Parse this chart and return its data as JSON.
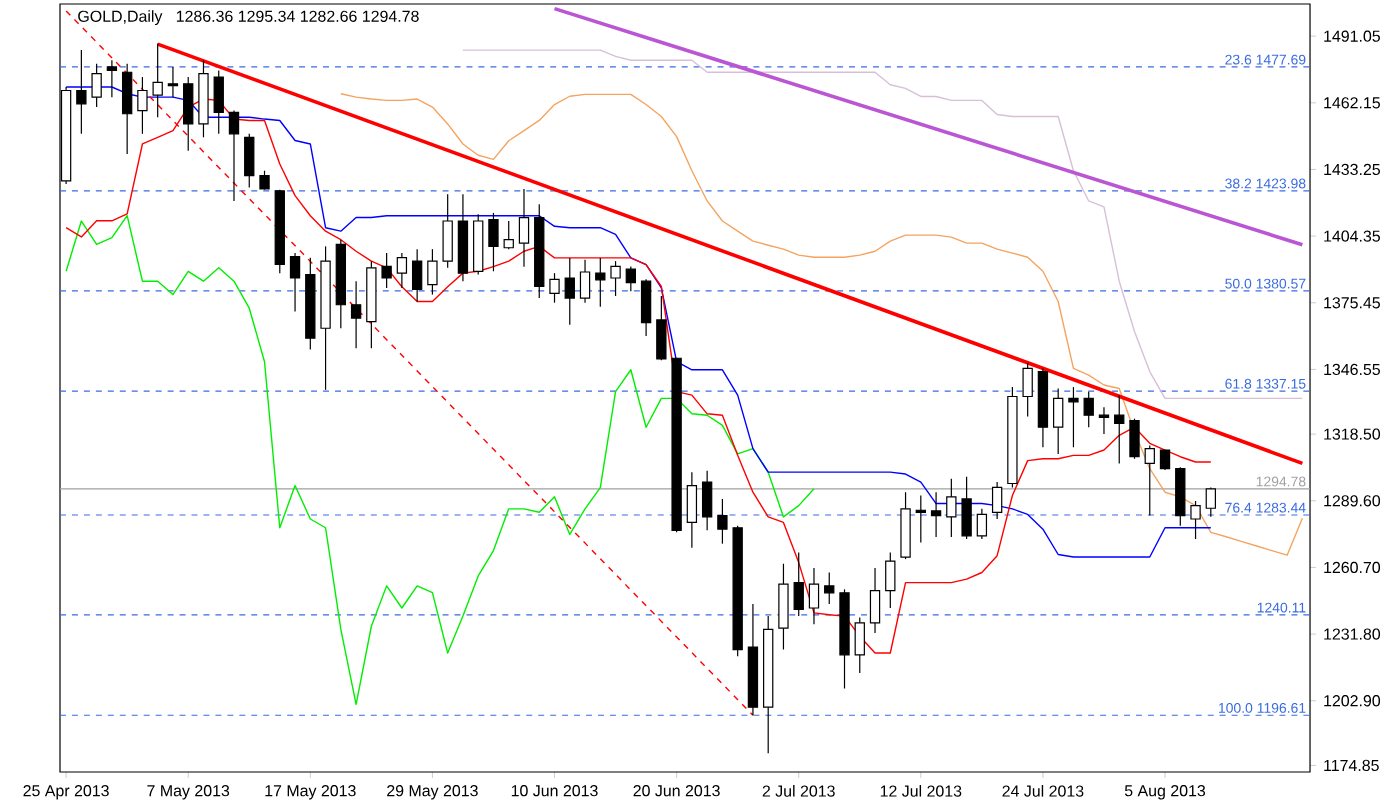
{
  "chart_data": {
    "type": "candlestick",
    "title": "GOLD,Daily",
    "subtitle": "1286.36 1295.34 1282.66 1294.78",
    "categories": [
      "25 Apr 2013",
      null,
      null,
      null,
      null,
      null,
      null,
      null,
      "7 May 2013",
      null,
      null,
      null,
      null,
      null,
      null,
      null,
      "17 May 2013",
      null,
      null,
      null,
      null,
      null,
      null,
      null,
      "29 May 2013",
      null,
      null,
      null,
      null,
      null,
      null,
      null,
      "10 Jun 2013",
      null,
      null,
      null,
      null,
      null,
      null,
      null,
      "20 Jun 2013",
      null,
      null,
      null,
      null,
      null,
      null,
      null,
      "2 Jul 2013",
      null,
      null,
      null,
      null,
      null,
      null,
      null,
      "12 Jul 2013",
      null,
      null,
      null,
      null,
      null,
      null,
      null,
      "24 Jul 2013",
      null,
      null,
      null,
      null,
      null,
      null,
      null,
      "5 Aug 2013",
      null,
      null,
      null,
      null,
      null,
      null,
      null,
      null,
      null
    ],
    "ohlc": [
      [
        1428.3,
        1469.0,
        1426.9,
        1467.5
      ],
      [
        1467.5,
        1485.0,
        1448.7,
        1461.7
      ],
      [
        1464.6,
        1479.1,
        1460.3,
        1474.8
      ],
      [
        1477.7,
        1480.6,
        1464.6,
        1476.2
      ],
      [
        1475.4,
        1479.1,
        1440.0,
        1457.4
      ],
      [
        1458.8,
        1473.3,
        1448.7,
        1467.5
      ],
      [
        1465.5,
        1487.9,
        1455.9,
        1471.0
      ],
      [
        1470.4,
        1477.7,
        1464.6,
        1469.6
      ],
      [
        1470.4,
        1473.3,
        1441.4,
        1453.0
      ],
      [
        1453.0,
        1480.6,
        1447.2,
        1474.8
      ],
      [
        1473.3,
        1476.2,
        1448.7,
        1458.0
      ],
      [
        1458.0,
        1458.8,
        1419.6,
        1448.7
      ],
      [
        1447.2,
        1448.7,
        1425.4,
        1430.6
      ],
      [
        1430.6,
        1432.7,
        1424.5,
        1424.8
      ],
      [
        1424.0,
        1424.5,
        1388.3,
        1392.1
      ],
      [
        1395.5,
        1397.0,
        1371.7,
        1386.2
      ],
      [
        1387.7,
        1395.0,
        1355.2,
        1360.1
      ],
      [
        1364.4,
        1399.9,
        1337.7,
        1393.5
      ],
      [
        1400.8,
        1402.8,
        1364.4,
        1374.6
      ],
      [
        1374.6,
        1384.8,
        1355.7,
        1368.8
      ],
      [
        1367.3,
        1393.5,
        1355.7,
        1390.6
      ],
      [
        1391.2,
        1397.0,
        1381.9,
        1386.2
      ],
      [
        1388.3,
        1397.0,
        1381.9,
        1395.0
      ],
      [
        1393.5,
        1398.7,
        1376.0,
        1381.3
      ],
      [
        1383.3,
        1398.7,
        1379.0,
        1393.5
      ],
      [
        1393.5,
        1422.5,
        1390.6,
        1410.9
      ],
      [
        1410.9,
        1422.5,
        1384.8,
        1388.3
      ],
      [
        1389.1,
        1413.8,
        1387.7,
        1410.9
      ],
      [
        1411.5,
        1414.4,
        1389.1,
        1399.9
      ],
      [
        1399.3,
        1410.9,
        1398.7,
        1402.8
      ],
      [
        1401.3,
        1424.8,
        1391.1,
        1412.4
      ],
      [
        1412.4,
        1418.2,
        1377.5,
        1382.5
      ],
      [
        1379.5,
        1388.3,
        1375.5,
        1385.6
      ],
      [
        1386.2,
        1394.9,
        1365.9,
        1377.5
      ],
      [
        1377.5,
        1394.1,
        1375.5,
        1388.8
      ],
      [
        1388.3,
        1394.9,
        1373.7,
        1385.4
      ],
      [
        1386.2,
        1393.5,
        1378.4,
        1391.2
      ],
      [
        1390.0,
        1391.2,
        1380.4,
        1384.2
      ],
      [
        1384.8,
        1385.6,
        1361.0,
        1366.8
      ],
      [
        1368.0,
        1378.4,
        1350.5,
        1351.1
      ],
      [
        1351.4,
        1351.4,
        1275.9,
        1276.8
      ],
      [
        1280.2,
        1302.0,
        1269.2,
        1296.2
      ],
      [
        1297.7,
        1302.6,
        1276.8,
        1282.6
      ],
      [
        1283.2,
        1290.4,
        1271.0,
        1277.3
      ],
      [
        1277.9,
        1278.8,
        1222.2,
        1225.1
      ],
      [
        1226.2,
        1244.8,
        1196.6,
        1200.1
      ],
      [
        1200.1,
        1239.6,
        1180.1,
        1233.8
      ],
      [
        1234.4,
        1262.3,
        1225.1,
        1253.5
      ],
      [
        1254.1,
        1267.2,
        1239.6,
        1242.5
      ],
      [
        1243.1,
        1260.5,
        1236.1,
        1253.5
      ],
      [
        1252.7,
        1258.5,
        1244.8,
        1249.7
      ],
      [
        1249.7,
        1251.2,
        1208.2,
        1222.8
      ],
      [
        1222.8,
        1239.0,
        1214.9,
        1236.7
      ],
      [
        1236.7,
        1260.5,
        1232.3,
        1250.6
      ],
      [
        1250.6,
        1267.2,
        1243.1,
        1263.4
      ],
      [
        1265.2,
        1293.3,
        1264.3,
        1286.1
      ],
      [
        1285.5,
        1291.9,
        1271.5,
        1284.6
      ],
      [
        1285.2,
        1293.3,
        1273.9,
        1283.2
      ],
      [
        1282.6,
        1299.1,
        1273.9,
        1291.3
      ],
      [
        1290.4,
        1300.0,
        1273.0,
        1274.4
      ],
      [
        1274.4,
        1286.1,
        1273.0,
        1283.7
      ],
      [
        1284.6,
        1297.7,
        1281.7,
        1295.4
      ],
      [
        1297.1,
        1338.9,
        1295.4,
        1334.8
      ],
      [
        1334.8,
        1349.4,
        1326.1,
        1347.0
      ],
      [
        1345.6,
        1347.0,
        1312.8,
        1321.5
      ],
      [
        1321.5,
        1338.3,
        1309.9,
        1334.0
      ],
      [
        1334.0,
        1338.9,
        1312.8,
        1332.5
      ],
      [
        1334.0,
        1336.9,
        1321.5,
        1326.7
      ],
      [
        1326.7,
        1330.2,
        1318.6,
        1325.8
      ],
      [
        1326.7,
        1335.4,
        1305.8,
        1323.2
      ],
      [
        1324.4,
        1325.2,
        1307.8,
        1308.7
      ],
      [
        1305.8,
        1313.6,
        1283.2,
        1312.2
      ],
      [
        1311.6,
        1311.6,
        1302.9,
        1303.5
      ],
      [
        1303.5,
        1304.1,
        1278.8,
        1283.2
      ],
      [
        1281.7,
        1289.5,
        1273.0,
        1287.5
      ],
      [
        1286.36,
        1295.34,
        1282.66,
        1294.78
      ],
      null,
      null,
      null,
      null,
      null,
      null
    ],
    "series": [
      {
        "type": "line",
        "color": "#f4a460",
        "values": [
          null,
          null,
          null,
          null,
          null,
          null,
          null,
          null,
          null,
          null,
          null,
          null,
          null,
          null,
          null,
          null,
          null,
          null,
          1466.1,
          1464.6,
          1463.8,
          1463.2,
          1463.2,
          1463.8,
          1460.3,
          1453.0,
          1444.3,
          1439.4,
          1437.6,
          1445.7,
          1450.1,
          1454.5,
          1461.4,
          1465.0,
          1465.8,
          1465.8,
          1465.8,
          1465.8,
          1461.4,
          1456.2,
          1447.5,
          1432.7,
          1419.6,
          1410.9,
          1406.5,
          1402.2,
          1400.4,
          1398.7,
          1396.1,
          1395.2,
          1395.2,
          1395.2,
          1396.1,
          1397.8,
          1402.2,
          1404.8,
          1404.8,
          1404.8,
          1403.9,
          1401.3,
          1401.3,
          1398.7,
          1397.0,
          1395.2,
          1389.1,
          1376.0,
          1347.0,
          1344.1,
          1339.8,
          1338.3,
          1319.5,
          1303.5,
          1293.3,
          1291.3,
          1287.5,
          1275.9,
          1274,
          1272,
          1270,
          1268,
          1266,
          1282
        ]
      },
      {
        "type": "line",
        "color": "#d8bfd8",
        "values": [
          null,
          null,
          null,
          null,
          null,
          null,
          null,
          null,
          null,
          null,
          null,
          null,
          null,
          null,
          null,
          null,
          null,
          null,
          null,
          null,
          null,
          null,
          null,
          null,
          null,
          null,
          1485.0,
          1485.0,
          1485.0,
          1485.0,
          1485.0,
          1485.0,
          1485.0,
          1485.0,
          1485.0,
          1485.0,
          1482.3,
          1480.6,
          1480.6,
          1480.6,
          1480.6,
          1480.6,
          1475.4,
          1475.4,
          1475.4,
          1475.4,
          1475.4,
          1475.4,
          1475.4,
          1475.4,
          1475.4,
          1475.4,
          1475.4,
          1475.4,
          1470.0,
          1468.4,
          1464.9,
          1464.9,
          1463.2,
          1463.2,
          1463.2,
          1457.1,
          1456.2,
          1456.2,
          1456.2,
          1456.2,
          1432.7,
          1419.6,
          1417.0,
          1384.8,
          1363.0,
          1345.6,
          1334.0,
          1334.0,
          1334.0,
          1334.0,
          1334.0,
          1334.0,
          1334.0,
          1334.0,
          1334.0,
          1334.0
        ]
      },
      {
        "type": "line",
        "color": "#00ee00",
        "values": [
          1389.1,
          1410.9,
          1400.8,
          1403.7,
          1413.2,
          1384.8,
          1384.8,
          1379.0,
          1389.1,
          1384.8,
          1390.6,
          1384.8,
          1373.1,
          1349.9,
          1277.9,
          1296.2,
          1281.7,
          1277.9,
          1233.8,
          1201.3,
          1235.2,
          1252.7,
          1243.1,
          1252.7,
          1249.8,
          1223.6,
          1239.6,
          1257.0,
          1268.0,
          1286.1,
          1286.1,
          1284.6,
          1291.3,
          1275.0,
          1286.1,
          1295.3,
          1336.9,
          1346.4,
          1321.5,
          1334.0,
          1334.0,
          1327.3,
          1326.7,
          1322.3,
          1309.9,
          1312.2,
          1302.0,
          1282.6,
          1287.5,
          1294.8,
          null,
          null,
          null,
          null,
          null,
          null,
          null,
          null,
          null,
          null,
          null,
          null,
          null,
          null,
          null,
          null,
          null,
          null,
          null,
          null,
          null,
          null,
          null,
          null,
          null,
          null,
          null,
          null,
          null,
          null,
          null,
          null
        ]
      },
      {
        "type": "line",
        "color": "#0000ff",
        "values": [
          1469.0,
          1469.0,
          1469.0,
          1469.0,
          1466.1,
          1464.6,
          1464.6,
          1464.6,
          1463.2,
          1455.9,
          1455.9,
          1455.9,
          1455.9,
          1455.1,
          1454.5,
          1445.8,
          1444.3,
          1408.0,
          1406.5,
          1412.4,
          1412.4,
          1413.2,
          1413.2,
          1413.2,
          1413.2,
          1413.2,
          1413.2,
          1413.2,
          1413.2,
          1413.2,
          1413.2,
          1413.2,
          1408.6,
          1408.0,
          1408.0,
          1408.0,
          1405.1,
          1394.9,
          1392.0,
          1381.9,
          1349.9,
          1346.4,
          1346.4,
          1346.4,
          1335.4,
          1312.2,
          1302.0,
          1302.0,
          1302.0,
          1302.0,
          1302.0,
          1302.0,
          1302.0,
          1302.0,
          1302.0,
          1301.2,
          1297.7,
          1288.4,
          1288.4,
          1288.4,
          1288.4,
          1287.5,
          1286.1,
          1283.7,
          1277.3,
          1266.3,
          1265.2,
          1265.2,
          1265.2,
          1265.2,
          1265.2,
          1265.2,
          1277.9,
          1277.9,
          1277.9,
          1277.9,
          null,
          null,
          null,
          null,
          null,
          null
        ]
      },
      {
        "type": "line",
        "color": "#ff0000",
        "values": [
          1408,
          1404,
          1411,
          1411,
          1414,
          1444.3,
          1447.2,
          1450.1,
          1460.3,
          1463.8,
          1463.2,
          1455.1,
          1454.5,
          1454.5,
          1435.6,
          1421.9,
          1413.2,
          1406.5,
          1402.8,
          1397.8,
          1393.5,
          1390.6,
          1382.4,
          1376,
          1376,
          1382.4,
          1388.3,
          1389.1,
          1391.1,
          1393.5,
          1397.8,
          1399.9,
          1394.9,
          1394.9,
          1394.9,
          1394.9,
          1394.9,
          1394.9,
          1392,
          1382.5,
          1336.9,
          1335.4,
          1327.3,
          1326.7,
          1309.3,
          1293.3,
          1282.6,
          1280.2,
          1262.8,
          1241,
          1240.2,
          1239.6,
          1230.9,
          1223.6,
          1223.6,
          1254.1,
          1254.1,
          1254.1,
          1254.1,
          1255.6,
          1258.5,
          1265.8,
          1291.9,
          1307,
          1307.8,
          1307.8,
          1309.3,
          1309.3,
          1311.6,
          1318,
          1321.5,
          1314.5,
          1311.6,
          1308.7,
          1306.4,
          1306.4,
          null,
          null,
          null,
          null,
          null,
          null
        ]
      },
      {
        "type": "line",
        "color": "#ff0000",
        "line_style": "dashed",
        "values": [
          1502,
          null,
          null,
          null,
          null,
          null,
          null,
          null,
          null,
          null,
          null,
          null,
          null,
          null,
          null,
          null,
          null,
          null,
          null,
          null,
          null,
          null,
          null,
          null,
          null,
          null,
          null,
          null,
          null,
          null,
          null,
          null,
          null,
          null,
          null,
          null,
          null,
          null,
          null,
          null,
          null,
          null,
          null,
          null,
          null,
          1196.61,
          null,
          null,
          null,
          null,
          null,
          null,
          null,
          null,
          null,
          null,
          null,
          null,
          null,
          null,
          null,
          null,
          null,
          null,
          null,
          null,
          null,
          null,
          null,
          null,
          null,
          null,
          null,
          null,
          null,
          null,
          null,
          null,
          null,
          null,
          null,
          null
        ]
      },
      {
        "type": "line",
        "color": "#ff0000",
        "line_style": "solid",
        "values": [
          null,
          null,
          null,
          null,
          null,
          null,
          1487.6,
          null,
          null,
          null,
          null,
          null,
          null,
          null,
          null,
          null,
          null,
          null,
          null,
          null,
          null,
          null,
          null,
          null,
          null,
          null,
          null,
          null,
          null,
          null,
          null,
          null,
          null,
          null,
          null,
          null,
          null,
          null,
          null,
          null,
          null,
          null,
          null,
          null,
          null,
          null,
          null,
          null,
          null,
          null,
          null,
          null,
          null,
          null,
          null,
          null,
          null,
          null,
          null,
          null,
          null,
          null,
          null,
          null,
          null,
          null,
          null,
          null,
          null,
          null,
          null,
          null,
          null,
          null,
          null,
          null,
          null,
          null,
          null,
          null,
          null,
          1305.8
        ]
      },
      {
        "type": "line",
        "color": "#ba55d3",
        "line_style": "solid",
        "values": [
          null,
          null,
          null,
          null,
          null,
          null,
          null,
          null,
          null,
          null,
          null,
          null,
          null,
          null,
          null,
          null,
          null,
          null,
          null,
          null,
          null,
          null,
          null,
          null,
          null,
          null,
          null,
          null,
          null,
          null,
          null,
          null,
          1503.0,
          null,
          null,
          null,
          null,
          null,
          null,
          null,
          null,
          null,
          null,
          null,
          null,
          null,
          null,
          null,
          null,
          null,
          null,
          null,
          null,
          null,
          null,
          null,
          null,
          null,
          null,
          null,
          null,
          null,
          null,
          null,
          null,
          null,
          null,
          null,
          null,
          null,
          null,
          null,
          null,
          null,
          null,
          null,
          null,
          null,
          null,
          null,
          null,
          1400.6
        ]
      }
    ],
    "ylim": [
      1172,
      1505
    ],
    "yticks": [
      1491.05,
      1462.15,
      1433.25,
      1404.35,
      1375.45,
      1346.55,
      {
        "value": 1318.5,
        "label": "1318.50"
      },
      {
        "value": 1289.6,
        "label": "1289.60"
      },
      {
        "value": 1260.7,
        "label": "1260.70"
      },
      {
        "value": 1231.8,
        "label": "1231.80"
      },
      {
        "value": 1202.9,
        "label": "1202.90"
      },
      1174.85
    ],
    "ref_lines": [
      {
        "axis": "y",
        "value": 1477.69,
        "label": "23.6 1477.69",
        "color": "#3a6be0",
        "line_style": "dashed"
      },
      {
        "axis": "y",
        "value": 1423.98,
        "label": "38.2 1423.98",
        "color": "#3a6be0",
        "line_style": "dashed"
      },
      {
        "axis": "y",
        "value": 1380.57,
        "label": "50.0 1380.57",
        "color": "#3a6be0",
        "line_style": "dashed"
      },
      {
        "axis": "y",
        "value": 1337.15,
        "label": "61.8 1337.15",
        "color": "#3a6be0",
        "line_style": "dashed"
      },
      {
        "axis": "y",
        "value": 1283.44,
        "label": "76.4 1283.44",
        "color": "#3a6be0",
        "line_style": "dashed"
      },
      {
        "axis": "y",
        "value": 1196.61,
        "label": "100.0 1196.61",
        "color": "#3a6be0",
        "line_style": "dashed"
      },
      {
        "axis": "y",
        "value": 1240.11,
        "label": "1240.11",
        "color": "#3a6be0",
        "line_style": "dashed"
      },
      {
        "axis": "y",
        "value": 1294.78,
        "label": "1294.78",
        "color": "#a0a0a0",
        "line_style": "solid"
      }
    ]
  }
}
